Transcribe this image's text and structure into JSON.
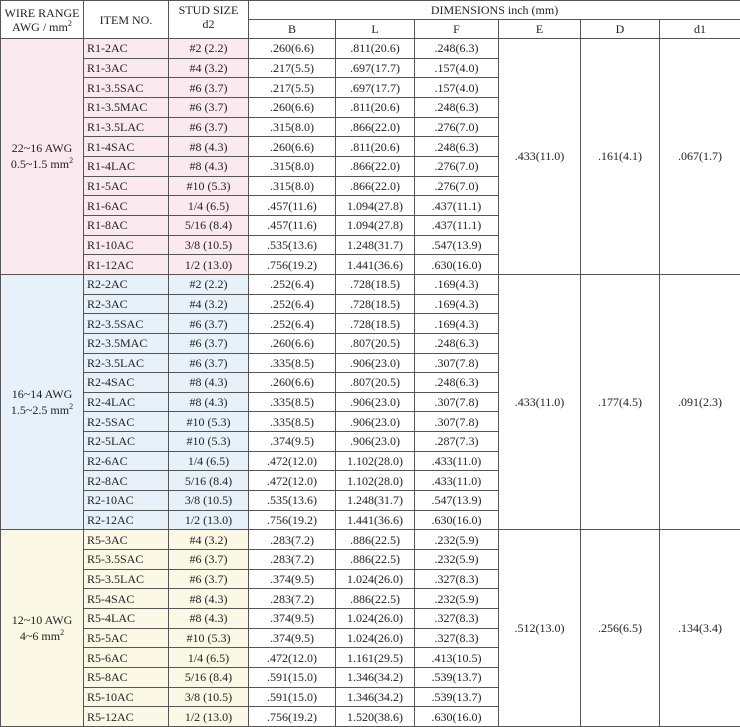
{
  "header": {
    "wire_range_line1": "WIRE RANGE",
    "wire_range_line2": "AWG / mm",
    "wire_range_sup": "2",
    "item_no": "ITEM NO.",
    "stud_size_line1": "STUD SIZE",
    "stud_size_line2": "d2",
    "dimensions": "DIMENSIONS inch (mm)",
    "col_b": "B",
    "col_l": "L",
    "col_f": "F",
    "col_e": "E",
    "col_d": "D",
    "col_d1": "d1"
  },
  "groups": [
    {
      "awg": "22~16 AWG",
      "mm": "0.5~1.5 mm",
      "mm_sup": "2",
      "E": ".433(11.0)",
      "D": ".161(4.1)",
      "d1": ".067(1.7)",
      "rows": [
        {
          "item": "R1-2AC",
          "stud": "#2 (2.2)",
          "B": ".260(6.6)",
          "L": ".811(20.6)",
          "F": ".248(6.3)"
        },
        {
          "item": "R1-3AC",
          "stud": "#4 (3.2)",
          "B": ".217(5.5)",
          "L": ".697(17.7)",
          "F": ".157(4.0)"
        },
        {
          "item": "R1-3.5SAC",
          "stud": "#6 (3.7)",
          "B": ".217(5.5)",
          "L": ".697(17.7)",
          "F": ".157(4.0)"
        },
        {
          "item": "R1-3.5MAC",
          "stud": "#6 (3.7)",
          "B": ".260(6.6)",
          "L": ".811(20.6)",
          "F": ".248(6.3)"
        },
        {
          "item": "R1-3.5LAC",
          "stud": "#6 (3.7)",
          "B": ".315(8.0)",
          "L": ".866(22.0)",
          "F": ".276(7.0)"
        },
        {
          "item": "R1-4SAC",
          "stud": "#8 (4.3)",
          "B": ".260(6.6)",
          "L": ".811(20.6)",
          "F": ".248(6.3)"
        },
        {
          "item": "R1-4LAC",
          "stud": "#8 (4.3)",
          "B": ".315(8.0)",
          "L": ".866(22.0)",
          "F": ".276(7.0)"
        },
        {
          "item": "R1-5AC",
          "stud": "#10 (5.3)",
          "B": ".315(8.0)",
          "L": ".866(22.0)",
          "F": ".276(7.0)"
        },
        {
          "item": "R1-6AC",
          "stud": "1/4 (6.5)",
          "B": ".457(11.6)",
          "L": "1.094(27.8)",
          "F": ".437(11.1)"
        },
        {
          "item": "R1-8AC",
          "stud": "5/16 (8.4)",
          "B": ".457(11.6)",
          "L": "1.094(27.8)",
          "F": ".437(11.1)"
        },
        {
          "item": "R1-10AC",
          "stud": "3/8 (10.5)",
          "B": ".535(13.6)",
          "L": "1.248(31.7)",
          "F": ".547(13.9)"
        },
        {
          "item": "R1-12AC",
          "stud": "1/2 (13.0)",
          "B": ".756(19.2)",
          "L": "1.441(36.6)",
          "F": ".630(16.0)"
        }
      ]
    },
    {
      "awg": "16~14 AWG",
      "mm": "1.5~2.5 mm",
      "mm_sup": "2",
      "E": ".433(11.0)",
      "D": ".177(4.5)",
      "d1": ".091(2.3)",
      "rows": [
        {
          "item": "R2-2AC",
          "stud": "#2 (2.2)",
          "B": ".252(6.4)",
          "L": ".728(18.5)",
          "F": ".169(4.3)"
        },
        {
          "item": "R2-3AC",
          "stud": "#4 (3.2)",
          "B": ".252(6.4)",
          "L": ".728(18.5)",
          "F": ".169(4.3)"
        },
        {
          "item": "R2-3.5SAC",
          "stud": "#6 (3.7)",
          "B": ".252(6.4)",
          "L": ".728(18.5)",
          "F": ".169(4.3)"
        },
        {
          "item": "R2-3.5MAC",
          "stud": "#6 (3.7)",
          "B": ".260(6.6)",
          "L": ".807(20.5)",
          "F": ".248(6.3)"
        },
        {
          "item": "R2-3.5LAC",
          "stud": "#6 (3.7)",
          "B": ".335(8.5)",
          "L": ".906(23.0)",
          "F": ".307(7.8)"
        },
        {
          "item": "R2-4SAC",
          "stud": "#8 (4.3)",
          "B": ".260(6.6)",
          "L": ".807(20.5)",
          "F": ".248(6.3)"
        },
        {
          "item": "R2-4LAC",
          "stud": "#8 (4.3)",
          "B": ".335(8.5)",
          "L": ".906(23.0)",
          "F": ".307(7.8)"
        },
        {
          "item": "R2-5SAC",
          "stud": "#10 (5.3)",
          "B": ".335(8.5)",
          "L": ".906(23.0)",
          "F": ".307(7.8)"
        },
        {
          "item": "R2-5LAC",
          "stud": "#10 (5.3)",
          "B": ".374(9.5)",
          "L": ".906(23.0)",
          "F": ".287(7.3)"
        },
        {
          "item": "R2-6AC",
          "stud": "1/4 (6.5)",
          "B": ".472(12.0)",
          "L": "1.102(28.0)",
          "F": ".433(11.0)"
        },
        {
          "item": "R2-8AC",
          "stud": "5/16 (8.4)",
          "B": ".472(12.0)",
          "L": "1.102(28.0)",
          "F": ".433(11.0)"
        },
        {
          "item": "R2-10AC",
          "stud": "3/8 (10.5)",
          "B": ".535(13.6)",
          "L": "1.248(31.7)",
          "F": ".547(13.9)"
        },
        {
          "item": "R2-12AC",
          "stud": "1/2 (13.0)",
          "B": ".756(19.2)",
          "L": "1.441(36.6)",
          "F": ".630(16.0)"
        }
      ]
    },
    {
      "awg": "12~10 AWG",
      "mm": "4~6 mm",
      "mm_sup": "2",
      "E": ".512(13.0)",
      "D": ".256(6.5)",
      "d1": ".134(3.4)",
      "rows": [
        {
          "item": "R5-3AC",
          "stud": "#4 (3.2)",
          "B": ".283(7.2)",
          "L": ".886(22.5)",
          "F": ".232(5.9)"
        },
        {
          "item": "R5-3.5SAC",
          "stud": "#6 (3.7)",
          "B": ".283(7.2)",
          "L": ".886(22.5)",
          "F": ".232(5.9)"
        },
        {
          "item": "R5-3.5LAC",
          "stud": "#6 (3.7)",
          "B": ".374(9.5)",
          "L": "1.024(26.0)",
          "F": ".327(8.3)"
        },
        {
          "item": "R5-4SAC",
          "stud": "#8 (4.3)",
          "B": ".283(7.2)",
          "L": ".886(22.5)",
          "F": ".232(5.9)"
        },
        {
          "item": "R5-4LAC",
          "stud": "#8 (4.3)",
          "B": ".374(9.5)",
          "L": "1.024(26.0)",
          "F": ".327(8.3)"
        },
        {
          "item": "R5-5AC",
          "stud": "#10 (5.3)",
          "B": ".374(9.5)",
          "L": "1.024(26.0)",
          "F": ".327(8.3)"
        },
        {
          "item": "R5-6AC",
          "stud": "1/4 (6.5)",
          "B": ".472(12.0)",
          "L": "1.161(29.5)",
          "F": ".413(10.5)"
        },
        {
          "item": "R5-8AC",
          "stud": "5/16 (8.4)",
          "B": ".591(15.0)",
          "L": "1.346(34.2)",
          "F": ".539(13.7)"
        },
        {
          "item": "R5-10AC",
          "stud": "3/8 (10.5)",
          "B": ".591(15.0)",
          "L": "1.346(34.2)",
          "F": ".539(13.7)"
        },
        {
          "item": "R5-12AC",
          "stud": "1/2 (13.0)",
          "B": ".756(19.2)",
          "L": "1.520(38.6)",
          "F": ".630(16.0)"
        }
      ]
    }
  ]
}
